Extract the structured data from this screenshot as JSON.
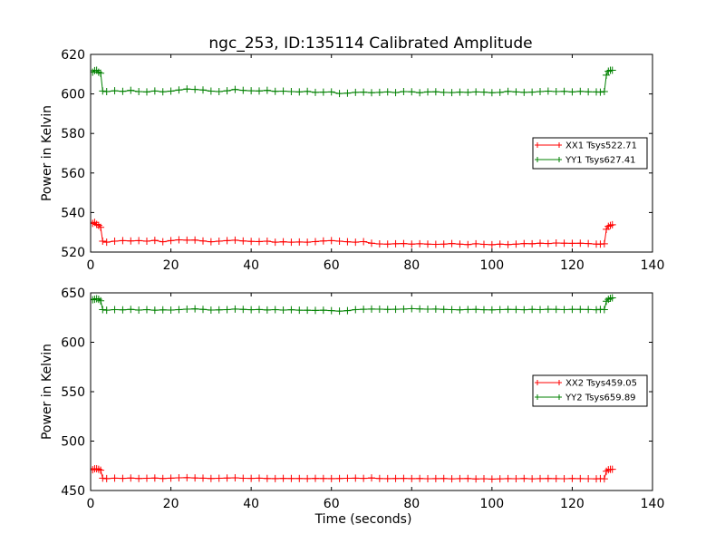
{
  "figure_title": "ngc_253, ID:135114 Calibrated Amplitude",
  "chart_data": [
    {
      "type": "line",
      "ylabel": "Power in Kelvin",
      "xlabel": "",
      "xlim": [
        0,
        140
      ],
      "ylim": [
        520,
        620
      ],
      "xticks": [
        "0",
        "20",
        "40",
        "60",
        "80",
        "100",
        "120",
        "140"
      ],
      "yticks": [
        "520",
        "540",
        "560",
        "580",
        "600",
        "620"
      ],
      "grid": false,
      "legend_position": "right",
      "series": [
        {
          "name": "XX1 Tsys522.71",
          "color": "#ff0000",
          "marker": "+",
          "x": [
            0.5,
            1,
            1.5,
            2,
            2.5,
            3,
            4,
            6,
            8,
            10,
            12,
            14,
            16,
            18,
            20,
            22,
            24,
            26,
            28,
            30,
            32,
            34,
            36,
            38,
            40,
            42,
            44,
            46,
            48,
            50,
            52,
            54,
            56,
            58,
            60,
            62,
            64,
            66,
            68,
            70,
            72,
            74,
            76,
            78,
            80,
            82,
            84,
            86,
            88,
            90,
            92,
            94,
            96,
            98,
            100,
            102,
            104,
            106,
            108,
            110,
            112,
            114,
            116,
            118,
            120,
            122,
            124,
            126,
            127,
            128,
            128.5,
            129,
            129.5,
            130
          ],
          "y": [
            534.5,
            535.0,
            534.0,
            533.5,
            532.5,
            525.5,
            525.0,
            525.5,
            525.8,
            525.6,
            525.8,
            525.5,
            525.9,
            525.2,
            525.8,
            526.2,
            526.0,
            526.1,
            525.6,
            525.2,
            525.5,
            525.8,
            526.0,
            525.6,
            525.4,
            525.3,
            525.5,
            525.0,
            525.2,
            525.0,
            525.1,
            525.0,
            525.3,
            525.6,
            525.8,
            525.5,
            525.2,
            525.0,
            525.3,
            524.5,
            524.1,
            524.0,
            524.2,
            524.3,
            524.0,
            524.2,
            524.0,
            523.9,
            524.0,
            524.3,
            524.0,
            523.8,
            524.2,
            523.9,
            523.7,
            524.0,
            523.8,
            524.0,
            524.3,
            524.2,
            524.5,
            524.3,
            524.6,
            524.5,
            524.4,
            524.5,
            524.3,
            524.0,
            524.0,
            524.2,
            531.5,
            533.0,
            533.5,
            533.8
          ]
        },
        {
          "name": "YY1 Tsys627.41",
          "color": "#008000",
          "marker": "+",
          "x": [
            0.5,
            1,
            1.5,
            2,
            2.5,
            3,
            4,
            6,
            8,
            10,
            12,
            14,
            16,
            18,
            20,
            22,
            24,
            26,
            28,
            30,
            32,
            34,
            36,
            38,
            40,
            42,
            44,
            46,
            48,
            50,
            52,
            54,
            56,
            58,
            60,
            62,
            64,
            66,
            68,
            70,
            72,
            74,
            76,
            78,
            80,
            82,
            84,
            86,
            88,
            90,
            92,
            94,
            96,
            98,
            100,
            102,
            104,
            106,
            108,
            110,
            112,
            114,
            116,
            118,
            120,
            122,
            124,
            126,
            127,
            128,
            128.5,
            129,
            129.5,
            130
          ],
          "y": [
            611.0,
            611.8,
            612.0,
            611.0,
            610.5,
            601.5,
            601.2,
            601.6,
            601.3,
            601.8,
            601.2,
            601.0,
            601.5,
            601.1,
            601.4,
            602.0,
            602.5,
            602.3,
            602.0,
            601.4,
            601.2,
            601.6,
            602.3,
            601.8,
            601.6,
            601.5,
            601.8,
            601.3,
            601.4,
            601.2,
            601.0,
            601.3,
            600.8,
            600.9,
            601.0,
            600.2,
            600.4,
            600.8,
            600.9,
            600.6,
            600.8,
            601.0,
            600.7,
            601.2,
            601.1,
            600.6,
            601.0,
            601.1,
            600.8,
            600.7,
            600.9,
            600.8,
            601.0,
            600.9,
            600.6,
            600.8,
            601.3,
            601.0,
            600.8,
            600.9,
            601.2,
            601.4,
            601.2,
            601.3,
            601.0,
            601.3,
            601.1,
            601.0,
            600.9,
            601.2,
            609.5,
            611.5,
            612.0,
            612.0
          ]
        }
      ]
    },
    {
      "type": "line",
      "ylabel": "Power in Kelvin",
      "xlabel": "Time (seconds)",
      "xlim": [
        0,
        140
      ],
      "ylim": [
        450,
        650
      ],
      "xticks": [
        "0",
        "20",
        "40",
        "60",
        "80",
        "100",
        "120",
        "140"
      ],
      "yticks": [
        "450",
        "500",
        "550",
        "600",
        "650"
      ],
      "grid": false,
      "legend_position": "right",
      "series": [
        {
          "name": "XX2 Tsys459.05",
          "color": "#ff0000",
          "marker": "+",
          "x": [
            0.5,
            1,
            1.5,
            2,
            2.5,
            3,
            4,
            6,
            8,
            10,
            12,
            14,
            16,
            18,
            20,
            22,
            24,
            26,
            28,
            30,
            32,
            34,
            36,
            38,
            40,
            42,
            44,
            46,
            48,
            50,
            52,
            54,
            56,
            58,
            60,
            62,
            64,
            66,
            68,
            70,
            72,
            74,
            76,
            78,
            80,
            82,
            84,
            86,
            88,
            90,
            92,
            94,
            96,
            98,
            100,
            102,
            104,
            106,
            108,
            110,
            112,
            114,
            116,
            118,
            120,
            122,
            124,
            126,
            127,
            128,
            128.5,
            129,
            129.5,
            130
          ],
          "y": [
            471.0,
            472.0,
            472.0,
            471.5,
            470.5,
            462.5,
            462.0,
            462.5,
            462.3,
            462.6,
            462.2,
            462.4,
            462.6,
            462.1,
            462.5,
            462.8,
            463.0,
            462.7,
            462.5,
            462.2,
            462.4,
            462.6,
            462.8,
            462.4,
            462.3,
            462.5,
            462.2,
            462.0,
            462.3,
            462.1,
            462.2,
            462.0,
            462.3,
            462.1,
            462.0,
            462.2,
            462.4,
            462.5,
            462.3,
            462.7,
            462.2,
            462.0,
            462.1,
            462.3,
            462.0,
            462.2,
            461.9,
            462.0,
            462.1,
            461.8,
            462.0,
            462.1,
            461.7,
            461.9,
            461.6,
            461.8,
            462.0,
            461.9,
            462.1,
            461.8,
            462.0,
            462.2,
            462.0,
            461.9,
            462.1,
            462.0,
            461.9,
            461.8,
            462.0,
            461.8,
            469.5,
            471.0,
            471.5,
            471.5
          ]
        },
        {
          "name": "YY2 Tsys659.89",
          "color": "#008000",
          "marker": "+",
          "x": [
            0.5,
            1,
            1.5,
            2,
            2.5,
            3,
            4,
            6,
            8,
            10,
            12,
            14,
            16,
            18,
            20,
            22,
            24,
            26,
            28,
            30,
            32,
            34,
            36,
            38,
            40,
            42,
            44,
            46,
            48,
            50,
            52,
            54,
            56,
            58,
            60,
            62,
            64,
            66,
            68,
            70,
            72,
            74,
            76,
            78,
            80,
            82,
            84,
            86,
            88,
            90,
            92,
            94,
            96,
            98,
            100,
            102,
            104,
            106,
            108,
            110,
            112,
            114,
            116,
            118,
            120,
            122,
            124,
            126,
            127,
            128,
            128.5,
            129,
            129.5,
            130
          ],
          "y": [
            643.0,
            643.5,
            644.0,
            643.5,
            642.0,
            633.0,
            632.5,
            633.0,
            632.8,
            633.2,
            632.6,
            633.0,
            632.4,
            632.8,
            632.6,
            633.0,
            633.5,
            633.8,
            633.2,
            632.6,
            632.8,
            633.0,
            633.6,
            633.2,
            632.9,
            633.1,
            632.7,
            633.0,
            632.6,
            632.9,
            632.5,
            632.4,
            632.2,
            632.5,
            632.0,
            631.5,
            632.0,
            633.0,
            633.4,
            633.6,
            633.5,
            633.2,
            633.4,
            633.6,
            634.0,
            633.7,
            633.5,
            633.6,
            633.3,
            633.0,
            632.8,
            633.1,
            633.2,
            632.9,
            632.8,
            633.0,
            633.3,
            633.1,
            632.9,
            633.2,
            633.0,
            633.4,
            633.3,
            633.0,
            633.2,
            633.3,
            633.1,
            632.9,
            633.2,
            633.0,
            641.5,
            643.5,
            644.5,
            645.0
          ]
        }
      ]
    }
  ]
}
